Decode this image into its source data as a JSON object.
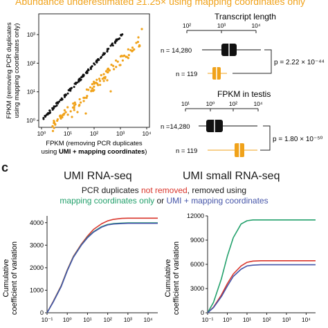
{
  "header": {
    "text": "Abundance underestimated ≥1.25× using mapping coordinates only"
  },
  "scatter": {
    "ylabel_lines": [
      "FPKM (removing PCR duplicates",
      "using mapping coordinates only)"
    ],
    "xlabel_line1": "FPKM (removing PCR duplicates",
    "xlabel_line2_prefix": "using ",
    "xlabel_line2_bold": "UMI + mapping coordinates",
    "xlabel_line2_suffix": ")",
    "x_ticks": [
      "10⁰",
      "10¹",
      "10²",
      "10³",
      "10⁴"
    ],
    "y_ticks": [
      "10⁰",
      "10¹",
      "10²",
      "10³"
    ],
    "colors": {
      "all": "#111111",
      "underestimated": "#f0a21a"
    }
  },
  "boxplots": [
    {
      "title": "Transcript length",
      "ticks": [
        "10²",
        "10³",
        "10⁴"
      ],
      "rows": [
        {
          "label": "n = 14,280",
          "color": "#111111"
        },
        {
          "label": "n = 119",
          "color": "#f0a21a"
        }
      ],
      "pvalue": "p = 2.22 × 10⁻⁴⁴"
    },
    {
      "title": "FPKM in testis",
      "ticks": [
        "10¹",
        "10⁰",
        "10²",
        "10⁴"
      ],
      "rows": [
        {
          "label": "n =14,280",
          "color": "#111111"
        },
        {
          "label": "n = 119",
          "color": "#f0a21a"
        }
      ],
      "pvalue": "p = 1.80 × 10⁻⁵⁰"
    }
  ],
  "panel_c": {
    "letter": "c",
    "subtitle_a": "UMI RNA-seq",
    "subtitle_b": "UMI small RNA-seq",
    "legend_line1_a": "PCR duplicates ",
    "legend_line1_b": "not removed",
    "legend_line1_c": ", removed using",
    "legend_line2_a": "mapping coordinates only",
    "legend_line2_b": " or ",
    "legend_line2_c": "UMI + mapping coordinates",
    "ylabel_lines": [
      "Cumulative",
      "coefficient of variation"
    ],
    "colors": {
      "not_removed": "#d9352b",
      "mapping": "#22a06b",
      "umi": "#4454a8"
    }
  },
  "chart_data": [
    {
      "type": "line",
      "title": "UMI RNA-seq",
      "ylabel": "Cumulative coefficient of variation",
      "y_ticks": [
        "0",
        "1000",
        "2000",
        "3000",
        "4000"
      ],
      "ylim": [
        0,
        4300
      ],
      "x_ticks": [
        "10⁻¹",
        "10⁰",
        "10¹",
        "10²",
        "10³",
        "10⁴"
      ],
      "xlim": [
        0.1,
        30000
      ],
      "x_scale": "log",
      "series": [
        {
          "name": "not removed",
          "color": "#d9352b",
          "x": [
            0.1,
            0.2,
            0.5,
            1,
            2,
            5,
            10,
            20,
            50,
            100,
            200,
            500,
            1000,
            10000,
            30000
          ],
          "y": [
            0,
            500,
            1200,
            1900,
            2500,
            3050,
            3400,
            3700,
            3950,
            4080,
            4150,
            4190,
            4200,
            4200,
            4200
          ]
        },
        {
          "name": "mapping coordinates only",
          "color": "#22a06b",
          "x": [
            0.1,
            0.2,
            0.5,
            1,
            2,
            5,
            10,
            20,
            50,
            100,
            200,
            500,
            1000,
            10000,
            30000
          ],
          "y": [
            0,
            480,
            1180,
            1880,
            2480,
            3020,
            3350,
            3600,
            3820,
            3920,
            3960,
            3980,
            3990,
            3990,
            3990
          ]
        },
        {
          "name": "UMI + mapping coordinates",
          "color": "#4454a8",
          "x": [
            0.1,
            0.2,
            0.5,
            1,
            2,
            5,
            10,
            20,
            50,
            100,
            200,
            500,
            1000,
            10000,
            30000
          ],
          "y": [
            0,
            470,
            1160,
            1860,
            2460,
            3000,
            3330,
            3580,
            3800,
            3900,
            3940,
            3960,
            3970,
            3970,
            3970
          ]
        }
      ]
    },
    {
      "type": "line",
      "title": "UMI small RNA-seq",
      "ylabel": "Cumulative coefficient of variation",
      "y_ticks": [
        "0",
        "3000",
        "6000",
        "9000",
        "12000"
      ],
      "ylim": [
        0,
        12000
      ],
      "x_ticks": [
        "10⁻¹",
        "10⁰",
        "10¹",
        "10²",
        "10³",
        "10⁴"
      ],
      "xlim": [
        0.1,
        30000
      ],
      "x_scale": "log",
      "series": [
        {
          "name": "not removed",
          "color": "#d9352b",
          "x": [
            0.1,
            0.2,
            0.5,
            1,
            2,
            5,
            10,
            20,
            50,
            100,
            1000,
            30000
          ],
          "y": [
            0,
            700,
            2200,
            3600,
            4800,
            5800,
            6250,
            6400,
            6450,
            6450,
            6450,
            6450
          ]
        },
        {
          "name": "mapping coordinates only",
          "color": "#22a06b",
          "x": [
            0.1,
            0.2,
            0.5,
            1,
            2,
            5,
            10,
            20,
            50,
            100,
            1000,
            30000
          ],
          "y": [
            0,
            1300,
            4200,
            7000,
            9300,
            11000,
            11400,
            11500,
            11500,
            11500,
            11500,
            11500
          ]
        },
        {
          "name": "UMI + mapping coordinates",
          "color": "#4454a8",
          "x": [
            0.1,
            0.2,
            0.5,
            1,
            2,
            5,
            10,
            20,
            50,
            100,
            1000,
            30000
          ],
          "y": [
            0,
            650,
            2000,
            3300,
            4500,
            5400,
            5800,
            5900,
            5950,
            5950,
            5950,
            5950
          ]
        }
      ]
    }
  ]
}
